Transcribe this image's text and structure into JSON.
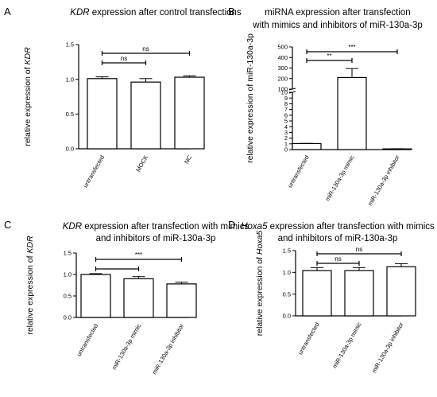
{
  "chart_data": [
    {
      "type": "bar",
      "panel": "A",
      "title": [
        {
          "t": "KDR",
          "i": true
        },
        {
          "t": " expression after control transfections",
          "i": false
        }
      ],
      "ylabel": [
        {
          "t": "relative expression of ",
          "i": false
        },
        {
          "t": "KDR",
          "i": true
        }
      ],
      "categories": [
        "untransfected",
        "MOCK",
        "NC"
      ],
      "values": [
        1.01,
        0.96,
        1.03
      ],
      "errors": [
        0.025,
        0.05,
        0.02
      ],
      "ylim": [
        0,
        1.5
      ],
      "yticks": [
        "0.0",
        "0.5",
        "1.0",
        "1.5"
      ],
      "significance": [
        {
          "from": 0,
          "to": 1,
          "label": "ns"
        },
        {
          "from": 0,
          "to": 2,
          "label": "ns"
        }
      ]
    },
    {
      "type": "bar",
      "panel": "B",
      "title": [
        {
          "t": "miRNA expression after transfection",
          "i": false
        }
      ],
      "title2": [
        {
          "t": "with mimics and inhibitors of miR-130a-3p",
          "i": false
        }
      ],
      "ylabel": [
        {
          "t": "relative expression of miR-130a-3p",
          "i": false
        }
      ],
      "categories": [
        "untransfected",
        "miR-130a-3p mimic",
        "miR-130a-3p inhibitor"
      ],
      "values": [
        1.05,
        210,
        0.12
      ],
      "errors": [
        0.03,
        85,
        0.03
      ],
      "broken_axis": true,
      "yticks": [
        "0",
        "1",
        "2",
        "3",
        "4",
        "5",
        "6",
        "7",
        "8",
        "9",
        "10",
        "100",
        "200",
        "300",
        "400",
        "500"
      ],
      "significance": [
        {
          "from": 0,
          "to": 1,
          "label": "**"
        },
        {
          "from": 0,
          "to": 2,
          "label": "***"
        }
      ]
    },
    {
      "type": "bar",
      "panel": "C",
      "title": [
        {
          "t": "KDR",
          "i": true
        },
        {
          "t": " expression after transfection with mimics",
          "i": false
        }
      ],
      "title2": [
        {
          "t": "and inhibitors of miR-130a-3p",
          "i": false
        }
      ],
      "ylabel": [
        {
          "t": "relative expression of ",
          "i": false
        },
        {
          "t": "KDR",
          "i": true
        }
      ],
      "categories": [
        "untransfected",
        "miR-130a-3p mimic",
        "miR-130a-3p inhibitor"
      ],
      "values": [
        1.0,
        0.9,
        0.78
      ],
      "errors": [
        0.02,
        0.05,
        0.04
      ],
      "ylim": [
        0,
        1.5
      ],
      "yticks": [
        "0.0",
        "0.5",
        "1.0",
        "1.5"
      ],
      "significance": [
        {
          "from": 0,
          "to": 1,
          "label": ""
        },
        {
          "from": 0,
          "to": 2,
          "label": "***"
        }
      ]
    },
    {
      "type": "bar",
      "panel": "D",
      "title": [
        {
          "t": "Hoxa5",
          "i": true
        },
        {
          "t": " expression after transfection with mimics",
          "i": false
        }
      ],
      "title2": [
        {
          "t": "and inhibitors of miR-130a-3p",
          "i": false
        }
      ],
      "ylabel": [
        {
          "t": "relative expression of ",
          "i": false
        },
        {
          "t": "Hoxa5",
          "i": true
        }
      ],
      "categories": [
        "untransfected",
        "miR-130a-3p mimic",
        "miR-130a-3p inhibitor"
      ],
      "values": [
        1.04,
        1.04,
        1.13
      ],
      "errors": [
        0.07,
        0.07,
        0.07
      ],
      "ylim": [
        0,
        1.5
      ],
      "yticks": [
        "0.0",
        "0.5",
        "1.0",
        "1.5"
      ],
      "significance": [
        {
          "from": 0,
          "to": 1,
          "label": "ns"
        },
        {
          "from": 0,
          "to": 2,
          "label": "ns"
        }
      ]
    }
  ]
}
